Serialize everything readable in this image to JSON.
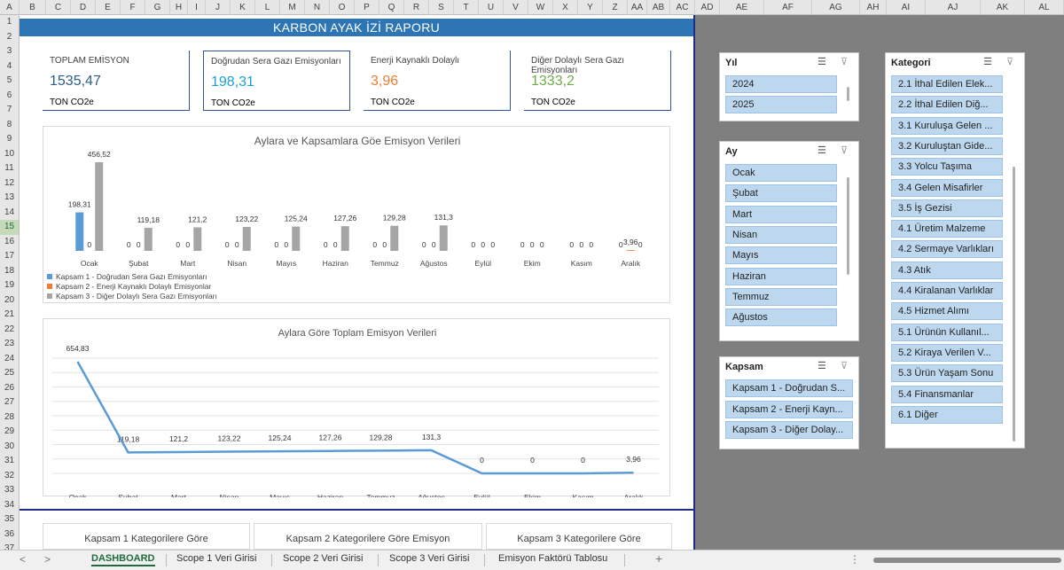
{
  "columns": [
    "A",
    "B",
    "C",
    "D",
    "E",
    "F",
    "G",
    "H",
    "I",
    "J",
    "K",
    "L",
    "M",
    "N",
    "O",
    "P",
    "Q",
    "R",
    "S",
    "T",
    "U",
    "V",
    "W",
    "X",
    "Y",
    "Z",
    "AA",
    "AB",
    "AC",
    "AD",
    "AE",
    "AF",
    "AG",
    "AH",
    "AI",
    "AJ",
    "AK",
    "AL"
  ],
  "rows": [
    "1",
    "2",
    "3",
    "4",
    "5",
    "6",
    "7",
    "8",
    "9",
    "10",
    "11",
    "12",
    "13",
    "14",
    "15",
    "16",
    "17",
    "18",
    "19",
    "20",
    "21",
    "22",
    "23",
    "24",
    "25",
    "26",
    "27",
    "28",
    "29",
    "30",
    "31",
    "32",
    "33",
    "34",
    "35",
    "36",
    "37"
  ],
  "banner": "KARBON AYAK İZİ RAPORU",
  "kpis": [
    {
      "label": "TOPLAM EMİSYON",
      "value": "1535,47",
      "unit": "TON CO2e",
      "color": "#2e5f8a"
    },
    {
      "label": "Doğrudan Sera Gazı Emisyonları",
      "value": "198,31",
      "unit": "TON CO2e",
      "color": "#1ba1d1"
    },
    {
      "label": "Enerji Kaynaklı Dolaylı",
      "value": "3,96",
      "unit": "TON CO2e",
      "color": "#ed7d31"
    },
    {
      "label": "Diğer Dolaylı Sera Gazı Emisyonları",
      "value": "1333,2",
      "unit": "TON CO2e",
      "color": "#70ad47"
    }
  ],
  "chart_data": [
    {
      "type": "bar",
      "title": "Aylara ve Kapsamlara Göe Emisyon Verileri",
      "categories": [
        "Ocak",
        "Şubat",
        "Mart",
        "Nisan",
        "Mayıs",
        "Haziran",
        "Temmuz",
        "Ağustos",
        "Eylül",
        "Ekim",
        "Kasım",
        "Aralık"
      ],
      "series": [
        {
          "name": "Kapsam 1 - Doğrudan Sera Gazı Emisyonları",
          "color": "#5b9bd5",
          "values": [
            198.31,
            0,
            0,
            0,
            0,
            0,
            0,
            0,
            0,
            0,
            0,
            0
          ],
          "labels": [
            "198,31",
            "0",
            "0",
            "0",
            "0",
            "0",
            "0",
            "0",
            "0",
            "0",
            "0",
            "0"
          ]
        },
        {
          "name": "Kapsam 2 - Enerji Kaynaklı Dolaylı Emisyonlar",
          "color": "#ed7d31",
          "values": [
            0,
            0,
            0,
            0,
            0,
            0,
            0,
            0,
            0,
            0,
            0,
            3.96
          ],
          "labels": [
            "0",
            "0",
            "0",
            "0",
            "0",
            "0",
            "0",
            "0",
            "0",
            "0",
            "0",
            "3,96"
          ]
        },
        {
          "name": "Kapsam 3 - Diğer Dolaylı Sera Gazı Emisyonları",
          "color": "#a5a5a5",
          "values": [
            456.52,
            119.18,
            121.2,
            123.22,
            125.24,
            127.26,
            129.28,
            131.3,
            0,
            0,
            0,
            0
          ],
          "labels": [
            "456,52",
            "119,18",
            "121,2",
            "123,22",
            "125,24",
            "127,26",
            "129,28",
            "131,3",
            "0",
            "0",
            "0",
            "0"
          ]
        }
      ],
      "legend": "bottom-left",
      "ylim": [
        0,
        456.52
      ]
    },
    {
      "type": "line",
      "title": "Aylara Göre Toplam Emisyon Verileri",
      "categories": [
        "Ocak",
        "Şubat",
        "Mart",
        "Nisan",
        "Mayıs",
        "Haziran",
        "Temmuz",
        "Ağustos",
        "Eylül",
        "Ekim",
        "Kasım",
        "Aralık"
      ],
      "series": [
        {
          "color": "#5b9bd5",
          "values": [
            654.83,
            119.18,
            121.2,
            123.22,
            125.24,
            127.26,
            129.28,
            131.3,
            0,
            0,
            0,
            3.96
          ],
          "labels": [
            "654,83",
            "119,18",
            "121,2",
            "123,22",
            "125,24",
            "127,26",
            "129,28",
            "131,3",
            "0",
            "0",
            "0",
            "3,96"
          ]
        }
      ],
      "ylim": [
        0,
        654.83
      ],
      "grid": true
    }
  ],
  "category_titles": [
    "Kapsam 1 Kategorilere Göre",
    "Kapsam 2 Kategorilere Göre Emisyon",
    "Kapsam 3 Kategorilere Göre"
  ],
  "slicers": {
    "yil": {
      "title": "Yıl",
      "items": [
        "2024",
        "2025"
      ]
    },
    "ay": {
      "title": "Ay",
      "items": [
        "Ocak",
        "Şubat",
        "Mart",
        "Nisan",
        "Mayıs",
        "Haziran",
        "Temmuz",
        "Ağustos"
      ]
    },
    "kapsam": {
      "title": "Kapsam",
      "items": [
        "Kapsam 1 - Doğrudan S...",
        "Kapsam 2 - Enerji Kayn...",
        "Kapsam 3 - Diğer Dolay..."
      ]
    },
    "kategori": {
      "title": "Kategori",
      "items": [
        "2.1 İthal Edilen Elek...",
        "2.2 İthal Edilen Diğ...",
        "3.1 Kuruluşa Gelen ...",
        "3.2 Kuruluştan Gide...",
        "3.3 Yolcu Taşıma",
        "3.4 Gelen Misafirler",
        "3.5 İş Gezisi",
        "4.1 Üretim Malzeme",
        "4.2 Sermaye Varlıkları",
        "4.3 Atık",
        "4.4 Kiralanan Varlıklar",
        "4.5 Hizmet Alımı",
        "5.1 Ürünün Kullanıl...",
        "5.2 Kiraya Verilen V...",
        "5.3 Ürün Yaşam Sonu",
        "5.4 Finansmanlar",
        "6.1 Diğer"
      ]
    }
  },
  "tabs": [
    "DASHBOARD",
    "Scope 1 Veri Girisi",
    "Scope 2 Veri Girisi",
    "Scope 3 Veri Girisi",
    "Emisyon Faktörü Tablosu"
  ],
  "nav": {
    "prev": "<",
    "next": ">",
    "add": "+",
    "more": "⋮"
  }
}
